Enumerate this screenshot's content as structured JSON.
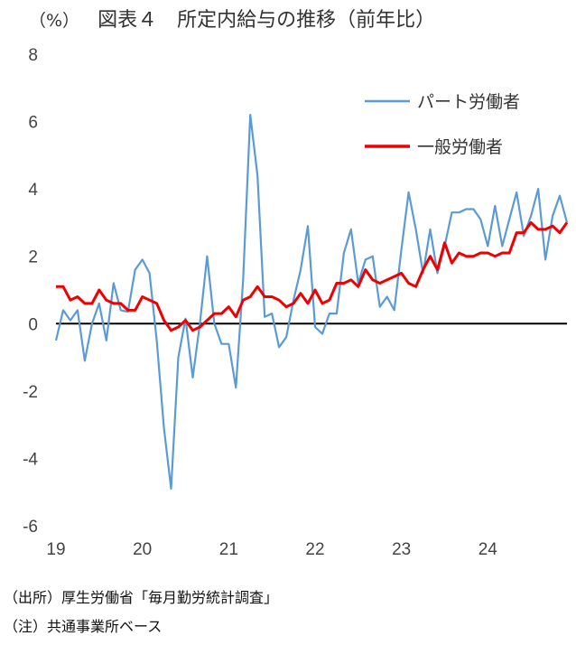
{
  "title": {
    "unit": "（%）",
    "text": "図表４　所定内給与の推移（前年比）"
  },
  "notes": {
    "source": "（出所）厚生労働省「毎月勤労統計調査」",
    "note": "（注）共通事業所ベース"
  },
  "colors": {
    "part_time": "#5b9bd5",
    "general": "#ee0000",
    "zero_line": "#000000"
  },
  "chart_data": {
    "type": "line",
    "title": "図表４　所定内給与の推移（前年比）",
    "ylabel": "（%）",
    "xlabel": "",
    "ylim": [
      -6,
      8
    ],
    "yticks": [
      -6,
      -4,
      -2,
      0,
      2,
      4,
      6,
      8
    ],
    "xlim": [
      2019.0,
      2024.9167
    ],
    "xticks": [
      {
        "value": 2019,
        "label": "19"
      },
      {
        "value": 2020,
        "label": "20"
      },
      {
        "value": 2021,
        "label": "21"
      },
      {
        "value": 2022,
        "label": "22"
      },
      {
        "value": 2023,
        "label": "23"
      },
      {
        "value": 2024,
        "label": "24"
      }
    ],
    "grid": false,
    "legend_position": "top-right",
    "x_unit": "monthly, January 2019 to December 2024",
    "series": [
      {
        "name": "パート労働者",
        "color": "#5b9bd5",
        "values": [
          -0.5,
          0.4,
          0.1,
          0.4,
          -1.1,
          0.0,
          0.6,
          -0.5,
          1.2,
          0.4,
          0.35,
          1.6,
          1.9,
          1.5,
          -0.5,
          -3.1,
          -4.9,
          -1.0,
          0.15,
          -1.6,
          0.0,
          2.0,
          0.0,
          -0.6,
          -0.6,
          -1.9,
          1.3,
          6.2,
          4.4,
          0.2,
          0.3,
          -0.7,
          -0.4,
          0.7,
          1.6,
          2.9,
          -0.1,
          -0.3,
          0.3,
          0.3,
          2.1,
          2.8,
          1.2,
          1.9,
          2.0,
          0.5,
          0.8,
          0.4,
          2.2,
          3.9,
          2.8,
          1.5,
          2.8,
          1.5,
          2.3,
          3.3,
          3.3,
          3.4,
          3.4,
          3.1,
          2.3,
          3.5,
          2.3,
          3.1,
          3.9,
          2.6,
          3.2,
          4.0,
          1.9,
          3.2,
          3.8,
          3.0
        ]
      },
      {
        "name": "一般労働者",
        "color": "#ee0000",
        "values": [
          1.1,
          1.1,
          0.7,
          0.8,
          0.6,
          0.6,
          1.0,
          0.7,
          0.6,
          0.6,
          0.4,
          0.4,
          0.8,
          0.7,
          0.6,
          0.1,
          -0.2,
          -0.1,
          0.1,
          -0.2,
          -0.1,
          0.1,
          0.3,
          0.3,
          0.5,
          0.2,
          0.7,
          0.8,
          1.1,
          0.8,
          0.8,
          0.7,
          0.5,
          0.6,
          0.9,
          0.6,
          1.0,
          0.6,
          0.7,
          1.2,
          1.2,
          1.3,
          1.1,
          1.6,
          1.3,
          1.2,
          1.3,
          1.4,
          1.5,
          1.2,
          1.1,
          1.6,
          2.0,
          1.6,
          2.4,
          1.8,
          2.1,
          2.0,
          2.0,
          2.1,
          2.1,
          2.0,
          2.1,
          2.1,
          2.7,
          2.7,
          3.0,
          2.8,
          2.8,
          2.9,
          2.7,
          3.0
        ]
      }
    ]
  }
}
